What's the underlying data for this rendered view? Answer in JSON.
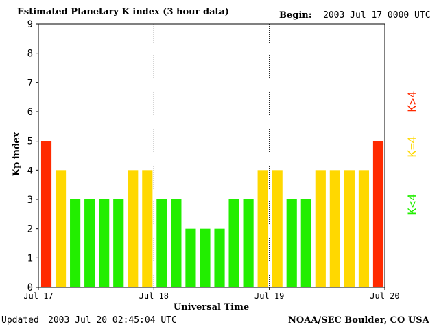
{
  "header": {
    "title": "Estimated Planetary K index (3 hour data)",
    "begin_label": "Begin:",
    "begin_value": "2003 Jul 17 0000 UTC"
  },
  "footer": {
    "updated_label": "Updated",
    "updated_value": "2003 Jul 20 02:45:04 UTC",
    "source": "NOAA/SEC Boulder, CO USA"
  },
  "legend": {
    "green_label": "K<4",
    "yellow_label": "K=4",
    "red_label": "K>4"
  },
  "colors": {
    "green": "#22ee00",
    "yellow": "#ffd800",
    "red": "#ff2a00"
  },
  "chart_data": {
    "type": "bar",
    "title": "Estimated Planetary K index (3 hour data)",
    "xlabel": "Universal Time",
    "ylabel": "Kp index",
    "ylim": [
      0,
      9
    ],
    "yticks": [
      "0",
      "1",
      "2",
      "3",
      "4",
      "5",
      "6",
      "7",
      "8",
      "9"
    ],
    "xtick_labels": [
      "Jul 17",
      "Jul 18",
      "Jul 19",
      "Jul 20"
    ],
    "day_separators": [
      1,
      2
    ],
    "values": [
      5,
      4,
      3,
      3,
      3,
      3,
      4,
      4,
      3,
      3,
      2,
      2,
      2,
      3,
      3,
      4,
      4,
      3,
      3,
      4,
      4,
      4,
      4,
      5
    ],
    "bars_per_day": 8,
    "days": 3
  }
}
